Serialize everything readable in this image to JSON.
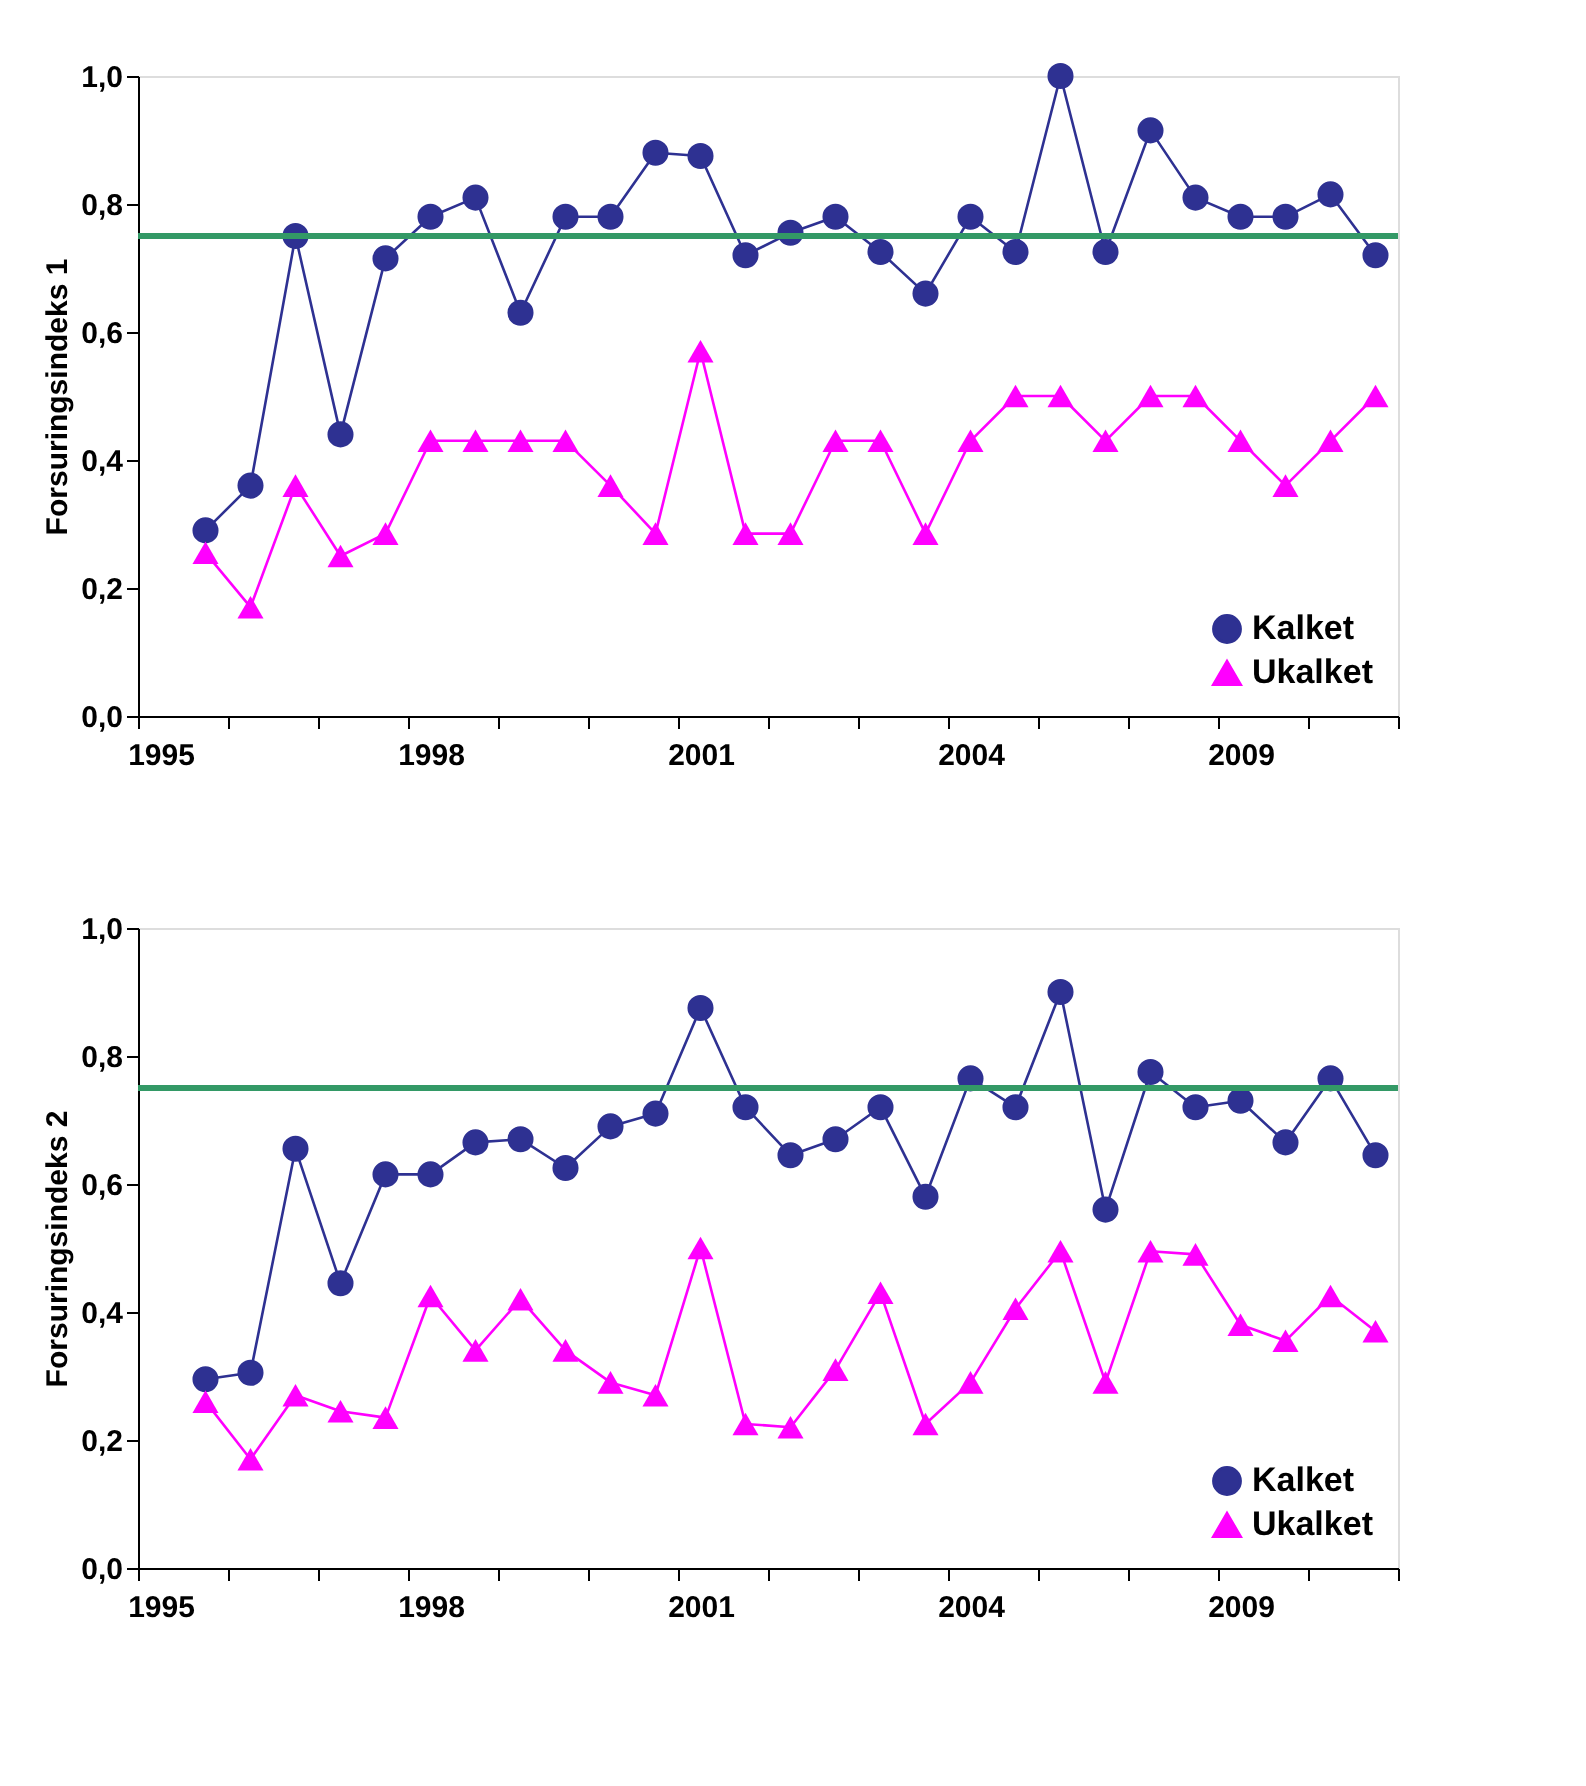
{
  "chart_data": [
    {
      "type": "line",
      "ylabel": "Forsuringsindeks 1",
      "categories": [
        "1995",
        null,
        null,
        null,
        null,
        null,
        "1998",
        null,
        null,
        null,
        null,
        null,
        "2001",
        null,
        null,
        null,
        null,
        null,
        "2004",
        null,
        null,
        null,
        null,
        null,
        "2009",
        null,
        null,
        null
      ],
      "ylim": [
        0,
        1
      ],
      "yticks": [
        {
          "value": 0,
          "label": "0,0"
        },
        {
          "value": 0.2,
          "label": "0,2"
        },
        {
          "value": 0.4,
          "label": "0,4"
        },
        {
          "value": 0.6,
          "label": "0,6"
        },
        {
          "value": 0.8,
          "label": "0,8"
        },
        {
          "value": 1,
          "label": "1,0"
        }
      ],
      "series": [
        {
          "name": "Kalket",
          "color": "#2e3192",
          "marker": "circle",
          "values": [
            null,
            0.29,
            0.36,
            0.75,
            0.44,
            0.715,
            0.78,
            0.81,
            0.63,
            0.78,
            0.78,
            0.88,
            0.875,
            0.72,
            0.755,
            0.78,
            0.725,
            0.66,
            0.78,
            0.725,
            1.0,
            0.725,
            0.915,
            0.81,
            0.78,
            0.78,
            0.815,
            0.72
          ]
        },
        {
          "name": "Ukalket",
          "color": "#ff00ff",
          "marker": "triangle",
          "values": [
            null,
            0.255,
            0.17,
            0.36,
            0.25,
            0.285,
            0.43,
            0.43,
            0.43,
            0.43,
            0.36,
            0.285,
            0.57,
            0.285,
            0.285,
            0.43,
            0.43,
            0.285,
            0.43,
            0.5,
            0.5,
            0.43,
            0.5,
            0.5,
            0.43,
            0.36,
            0.43,
            0.5
          ]
        }
      ],
      "ref_lines": [
        {
          "axis": "y",
          "value": 0.75,
          "color": "#339966"
        }
      ],
      "legend": "bottom right",
      "grid": false
    },
    {
      "type": "line",
      "ylabel": "Forsuringsindeks 2",
      "categories": [
        "1995",
        null,
        null,
        null,
        null,
        null,
        "1998",
        null,
        null,
        null,
        null,
        null,
        "2001",
        null,
        null,
        null,
        null,
        null,
        "2004",
        null,
        null,
        null,
        null,
        null,
        "2009",
        null,
        null,
        null
      ],
      "ylim": [
        0,
        1
      ],
      "yticks": [
        {
          "value": 0,
          "label": "0,0"
        },
        {
          "value": 0.2,
          "label": "0,2"
        },
        {
          "value": 0.4,
          "label": "0,4"
        },
        {
          "value": 0.6,
          "label": "0,6"
        },
        {
          "value": 0.8,
          "label": "0,8"
        },
        {
          "value": 1,
          "label": "1,0"
        }
      ],
      "series": [
        {
          "name": "Kalket",
          "color": "#2e3192",
          "marker": "circle",
          "values": [
            null,
            0.295,
            0.305,
            0.655,
            0.445,
            0.615,
            0.615,
            0.665,
            0.67,
            0.625,
            0.69,
            0.71,
            0.875,
            0.72,
            0.645,
            0.67,
            0.72,
            0.58,
            0.765,
            0.72,
            0.9,
            0.56,
            0.775,
            0.72,
            0.73,
            0.665,
            0.765,
            0.645
          ]
        },
        {
          "name": "Ukalket",
          "color": "#ff00ff",
          "marker": "triangle",
          "values": [
            null,
            0.26,
            0.17,
            0.27,
            0.245,
            0.235,
            0.425,
            0.34,
            0.42,
            0.34,
            0.29,
            0.27,
            0.5,
            0.225,
            0.22,
            0.31,
            0.43,
            0.225,
            0.29,
            0.405,
            0.495,
            0.29,
            0.495,
            0.49,
            0.38,
            0.355,
            0.425,
            0.37
          ]
        }
      ],
      "ref_lines": [
        {
          "axis": "y",
          "value": 0.75,
          "color": "#339966"
        }
      ],
      "legend": "bottom right",
      "grid": false
    }
  ]
}
